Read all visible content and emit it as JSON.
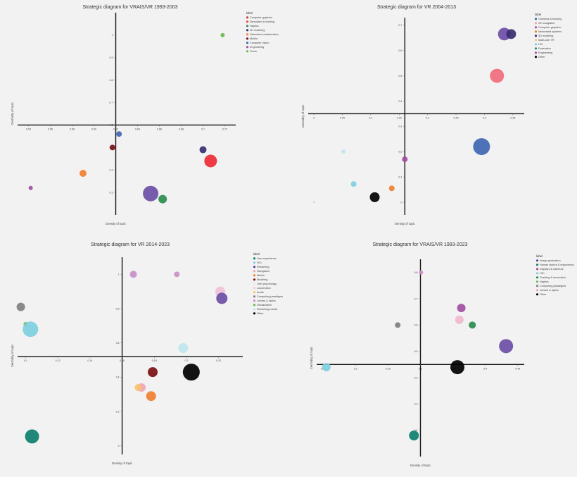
{
  "chart_data": [
    {
      "type": "scatter",
      "title": "Strategic diagram for VRAIS/VR 1993-2003",
      "xlabel": "Density of topic",
      "ylabel": "Centrality of topic",
      "xlim": [
        0.53,
        0.73
      ],
      "ylim": [
        0.2,
        1.1
      ],
      "cross": [
        0.62,
        0.6
      ],
      "xticks": [
        {
          "v": 0.54,
          "t": "0.54"
        },
        {
          "v": 0.56,
          "t": "0.56"
        },
        {
          "v": 0.58,
          "t": "0.58"
        },
        {
          "v": 0.6,
          "t": "0.60"
        },
        {
          "v": 0.62,
          "t": "0.62"
        },
        {
          "v": 0.64,
          "t": "0.64"
        },
        {
          "v": 0.66,
          "t": "0.66"
        },
        {
          "v": 0.68,
          "t": "0.68"
        },
        {
          "v": 0.7,
          "t": "0.7"
        },
        {
          "v": 0.72,
          "t": "0.72"
        }
      ],
      "yticks": [
        {
          "v": 0.3,
          "t": "0.3"
        },
        {
          "v": 0.4,
          "t": "0.4"
        },
        {
          "v": 0.5,
          "t": "0.5"
        },
        {
          "v": 0.6,
          "t": "0.6"
        },
        {
          "v": 0.7,
          "t": "0.7"
        },
        {
          "v": 0.8,
          "t": "0.8"
        },
        {
          "v": 0.9,
          "t": "0.9"
        },
        {
          "v": 1,
          "t": "1"
        }
      ],
      "legend_title": "label",
      "legend": [
        {
          "name": "Computer graphics",
          "color": "#c03f3f"
        },
        {
          "name": "Simulation & training",
          "color": "#e6552b"
        },
        {
          "name": "Haptics",
          "color": "#2a8c6e"
        },
        {
          "name": "3D modeling",
          "color": "#3a2e72"
        },
        {
          "name": "Networked collaboration",
          "color": "#f08030"
        },
        {
          "name": "Mobile",
          "color": "#7a1111"
        },
        {
          "name": "Computer vision",
          "color": "#3f67b3"
        },
        {
          "name": "Engineering",
          "color": "#a14ea0"
        },
        {
          "name": "Touch",
          "color": "#66bb4d"
        }
      ],
      "points": [
        {
          "x": 0.718,
          "y": 1.0,
          "size": 3,
          "color": "#66bb4d"
        },
        {
          "x": 0.623,
          "y": 0.56,
          "size": 4,
          "color": "#3f67b3"
        },
        {
          "x": 0.617,
          "y": 0.5,
          "size": 4,
          "color": "#7a1111"
        },
        {
          "x": 0.7,
          "y": 0.49,
          "size": 5,
          "color": "#3a2e72"
        },
        {
          "x": 0.707,
          "y": 0.44,
          "size": 9,
          "color": "#ee2a35"
        },
        {
          "x": 0.59,
          "y": 0.385,
          "size": 5,
          "color": "#f08030"
        },
        {
          "x": 0.542,
          "y": 0.32,
          "size": 3,
          "color": "#a14ea0"
        },
        {
          "x": 0.652,
          "y": 0.295,
          "size": 11,
          "color": "#6c4ea6"
        },
        {
          "x": 0.663,
          "y": 0.27,
          "size": 6,
          "color": "#2a8c4e"
        }
      ]
    },
    {
      "type": "scatter",
      "title": "Strategic diagram for VR 2004-2013",
      "xlabel": "Density of topic",
      "ylabel": "Centrality of topic",
      "xlim": [
        -0.01,
        0.37
      ],
      "ylim": [
        -0.05,
        0.73
      ],
      "cross": [
        0.16,
        0.35
      ],
      "xticks": [
        {
          "v": 0,
          "t": "0"
        },
        {
          "v": 0.05,
          "t": "0.05"
        },
        {
          "v": 0.1,
          "t": "0.1"
        },
        {
          "v": 0.15,
          "t": "0.15"
        },
        {
          "v": 0.2,
          "t": "0.2"
        },
        {
          "v": 0.25,
          "t": "0.25"
        },
        {
          "v": 0.3,
          "t": "0.3"
        },
        {
          "v": 0.35,
          "t": "0.35"
        }
      ],
      "yticks": [
        {
          "v": 0,
          "t": "0"
        },
        {
          "v": 0.1,
          "t": "0.1"
        },
        {
          "v": 0.2,
          "t": "0.2"
        },
        {
          "v": 0.3,
          "t": "0.3"
        },
        {
          "v": 0.4,
          "t": "0.4"
        },
        {
          "v": 0.5,
          "t": "0.5"
        },
        {
          "v": 0.6,
          "t": "0.6"
        },
        {
          "v": 0.7,
          "t": "0.7"
        }
      ],
      "legend_title": "label",
      "legend": [
        {
          "name": "Cameras & tracking",
          "color": "#3f67b3"
        },
        {
          "name": "VE navigation",
          "color": "#f4a3b8"
        },
        {
          "name": "Computer graphics",
          "color": "#a14ea0"
        },
        {
          "name": "Networked systems",
          "color": "#f08030"
        },
        {
          "name": "3D modeling",
          "color": "#3a2e72"
        },
        {
          "name": "Multi-user VR",
          "color": "#f5c76a"
        },
        {
          "name": "HCI",
          "color": "#7fcfe0"
        },
        {
          "name": "Evaluation",
          "color": "#2a8c6e"
        },
        {
          "name": "Engineering",
          "color": "#a14ea0"
        },
        {
          "name": "Other",
          "color": "#000000"
        }
      ],
      "points": [
        {
          "x": 0.335,
          "y": 0.665,
          "size": 9,
          "color": "#6c4ea6"
        },
        {
          "x": 0.347,
          "y": 0.665,
          "size": 7,
          "color": "#3a2e72"
        },
        {
          "x": 0.322,
          "y": 0.5,
          "size": 10,
          "color": "#f26d7d"
        },
        {
          "x": 0.295,
          "y": 0.22,
          "size": 12,
          "color": "#3f67b3"
        },
        {
          "x": 0.052,
          "y": 0.2,
          "size": 3,
          "color": "#bfe6ee"
        },
        {
          "x": 0.16,
          "y": 0.17,
          "size": 4,
          "color": "#a14ea0"
        },
        {
          "x": 0.07,
          "y": 0.072,
          "size": 4,
          "color": "#7fcfe0"
        },
        {
          "x": 0.137,
          "y": 0.055,
          "size": 4,
          "color": "#f08030"
        },
        {
          "x": 0.107,
          "y": 0.02,
          "size": 7,
          "color": "#000000"
        },
        {
          "x": 0.0,
          "y": 0.0,
          "size": 0.8,
          "color": "#999999"
        }
      ]
    },
    {
      "type": "scatter",
      "title": "Strategic diagram for VR 2014-2023",
      "xlabel": "Density of topic",
      "ylabel": "Centrality of topic",
      "xlim": [
        0.095,
        0.235
      ],
      "ylim": [
        -0.05,
        1.1
      ],
      "cross": [
        0.16,
        0.52
      ],
      "xticks": [
        {
          "v": 0.1,
          "t": "0.1"
        },
        {
          "v": 0.12,
          "t": "0.12"
        },
        {
          "v": 0.14,
          "t": "0.14"
        },
        {
          "v": 0.16,
          "t": "0.16"
        },
        {
          "v": 0.18,
          "t": "0.18"
        },
        {
          "v": 0.2,
          "t": "0.2"
        },
        {
          "v": 0.22,
          "t": "0.22"
        }
      ],
      "yticks": [
        {
          "v": 0,
          "t": "0"
        },
        {
          "v": 0.2,
          "t": "0.2"
        },
        {
          "v": 0.4,
          "t": "0.4"
        },
        {
          "v": 0.6,
          "t": "0.6"
        },
        {
          "v": 0.8,
          "t": "0.8"
        },
        {
          "v": 1,
          "t": "1"
        }
      ],
      "legend_title": "label",
      "legend": [
        {
          "name": "User experience",
          "color": "#0e7f6e"
        },
        {
          "name": "HCI",
          "color": "#7fcfe0"
        },
        {
          "name": "Rendering",
          "color": "#5b3f9e"
        },
        {
          "name": "Navigation",
          "color": "#f4a3b8"
        },
        {
          "name": "Mobile",
          "color": "#f08030"
        },
        {
          "name": "Modeling",
          "color": "#7a1111"
        },
        {
          "name": "User psychology",
          "color": "#e9e9f7"
        },
        {
          "name": "Locomotion",
          "color": "#f8c9d8"
        },
        {
          "name": "Audio",
          "color": "#f5c76a"
        },
        {
          "name": "Computing paradigms",
          "color": "#808080"
        },
        {
          "name": "Lenses & optics",
          "color": "#c990c9"
        },
        {
          "name": "Visualization",
          "color": "#66bb4d"
        },
        {
          "name": "Streaming media",
          "color": "#bfe6ee"
        },
        {
          "name": "Other",
          "color": "#000000"
        }
      ],
      "points": [
        {
          "x": 0.167,
          "y": 1.0,
          "size": 5,
          "color": "#c990c9"
        },
        {
          "x": 0.194,
          "y": 1.0,
          "size": 4,
          "color": "#c990c9"
        },
        {
          "x": 0.221,
          "y": 0.9,
          "size": 7,
          "color": "#f0c0d8"
        },
        {
          "x": 0.222,
          "y": 0.86,
          "size": 8,
          "color": "#6c4ea6"
        },
        {
          "x": 0.097,
          "y": 0.81,
          "size": 6,
          "color": "#808080"
        },
        {
          "x": 0.1,
          "y": 0.71,
          "size": 3,
          "color": "#66bb4d"
        },
        {
          "x": 0.103,
          "y": 0.68,
          "size": 11,
          "color": "#7fcfe0"
        },
        {
          "x": 0.198,
          "y": 0.57,
          "size": 7,
          "color": "#bfe6ee"
        },
        {
          "x": 0.179,
          "y": 0.43,
          "size": 7,
          "color": "#7a1111"
        },
        {
          "x": 0.203,
          "y": 0.43,
          "size": 12,
          "color": "#000000"
        },
        {
          "x": 0.172,
          "y": 0.34,
          "size": 6,
          "color": "#f4a3b8"
        },
        {
          "x": 0.17,
          "y": 0.34,
          "size": 5,
          "color": "#f5c76a"
        },
        {
          "x": 0.178,
          "y": 0.29,
          "size": 7,
          "color": "#f08030"
        },
        {
          "x": 0.104,
          "y": 0.055,
          "size": 10,
          "color": "#0e7f6e"
        }
      ]
    },
    {
      "type": "scatter",
      "title": "Strategic diagram for VRAIS/VR 1993-2023",
      "xlabel": "Density of topic",
      "ylabel": "Centrality of topic",
      "xlim": [
        0.14,
        0.46
      ],
      "ylim": [
        0.1,
        0.85
      ],
      "cross": [
        0.3,
        0.45
      ],
      "xticks": [
        {
          "v": 0.15,
          "t": "0.15"
        },
        {
          "v": 0.2,
          "t": "0.2"
        },
        {
          "v": 0.25,
          "t": "0.25"
        },
        {
          "v": 0.3,
          "t": "0.3"
        },
        {
          "v": 0.35,
          "t": "0.35"
        },
        {
          "v": 0.4,
          "t": "0.4"
        },
        {
          "v": 0.45,
          "t": "0.45"
        }
      ],
      "yticks": [
        {
          "v": 0.2,
          "t": "0.2"
        },
        {
          "v": 0.3,
          "t": "0.3"
        },
        {
          "v": 0.4,
          "t": "0.4"
        },
        {
          "v": 0.5,
          "t": "0.5"
        },
        {
          "v": 0.6,
          "t": "0.6"
        },
        {
          "v": 0.7,
          "t": "0.7"
        },
        {
          "v": 0.8,
          "t": "0.8"
        }
      ],
      "legend_title": "label",
      "legend": [
        {
          "name": "Image generation",
          "color": "#5b3f9e"
        },
        {
          "name": "Human factors & ergonomics",
          "color": "#0e7f6e"
        },
        {
          "name": "Displays & cameras",
          "color": "#a14ea0"
        },
        {
          "name": "HCI",
          "color": "#7fcfe0"
        },
        {
          "name": "Tracking & locomotion",
          "color": "#2a8c4e"
        },
        {
          "name": "Haptics",
          "color": "#66bb4d"
        },
        {
          "name": "Computing paradigms",
          "color": "#808080"
        },
        {
          "name": "Lenses & optics",
          "color": "#f4a3b8"
        },
        {
          "name": "Other",
          "color": "#000000"
        }
      ],
      "points": [
        {
          "x": 0.301,
          "y": 0.8,
          "size": 3,
          "color": "#c990c9"
        },
        {
          "x": 0.363,
          "y": 0.665,
          "size": 6,
          "color": "#a14ea0"
        },
        {
          "x": 0.36,
          "y": 0.62,
          "size": 6,
          "color": "#f0b8d0"
        },
        {
          "x": 0.38,
          "y": 0.6,
          "size": 5,
          "color": "#2a8c4e"
        },
        {
          "x": 0.265,
          "y": 0.6,
          "size": 4,
          "color": "#808080"
        },
        {
          "x": 0.432,
          "y": 0.52,
          "size": 10,
          "color": "#6c4ea6"
        },
        {
          "x": 0.155,
          "y": 0.44,
          "size": 6,
          "color": "#7fcfe0"
        },
        {
          "x": 0.357,
          "y": 0.44,
          "size": 10,
          "color": "#000000"
        },
        {
          "x": 0.29,
          "y": 0.18,
          "size": 7,
          "color": "#0e7f6e"
        }
      ]
    }
  ]
}
